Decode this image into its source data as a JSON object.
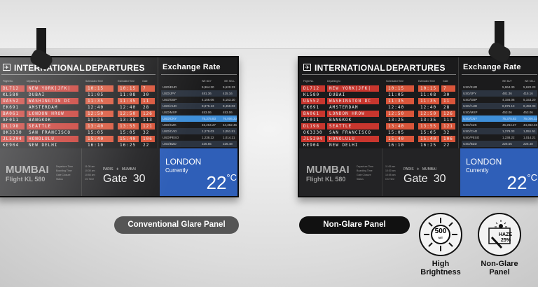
{
  "board": {
    "title_left": "INTERNATIONAL",
    "title_right": "DEPARTURES",
    "col_headers": [
      "Flight No.",
      "Departing to",
      "Scheduled Time",
      "Estimated Time",
      "Gate"
    ],
    "flights": [
      [
        "DL712",
        "NEW YORK|JFK|",
        "10:15",
        "10:15",
        "7"
      ],
      [
        "KL580",
        "DUBAI",
        "11:05",
        "11:08",
        "30"
      ],
      [
        "UA552",
        "WASHINGTON DC",
        "11:35",
        "11:35",
        "11"
      ],
      [
        "EK691",
        "AMSTERDAM",
        "12:40",
        "12:40",
        "28"
      ],
      [
        "BA061",
        "LONDON HROW",
        "12:50",
        "12:50",
        "126"
      ],
      [
        "AF011",
        "BANGKOK",
        "13:25",
        "13:35",
        "113"
      ],
      [
        "DL198",
        "SEATTLE",
        "13:40",
        "13:55",
        "121"
      ],
      [
        "OK3330",
        "SAN FRANCISCO",
        "15:05",
        "15:05",
        "32"
      ],
      [
        "JL5204",
        "HONOLULU",
        "15:40",
        "15:40",
        "106"
      ],
      [
        "KE904",
        "NEW DELHI",
        "16:10",
        "16:25",
        "22"
      ]
    ],
    "exchange": {
      "title": "Exchange Rate",
      "buy_label": "WE BUY",
      "sell_label": "WE SELL",
      "rows": [
        [
          "USD/EUR",
          "5,964.30",
          "5,620.23"
        ],
        [
          "USD/JPY",
          "481.36",
          "415.16"
        ],
        [
          "USD/GBP",
          "4,156.06",
          "5,153.20"
        ],
        [
          "USD/AUD",
          "8,875.13",
          "8,459.03"
        ],
        [
          "USD/MXP",
          "453.06",
          "453.06"
        ],
        [
          "USD/CNY",
          "75,375.83",
          "76,006.33"
        ],
        [
          "USD/CZK",
          "46,264.27",
          "44,362.46"
        ],
        [
          "USD/CAD",
          "1,279.03",
          "1,051.51"
        ],
        [
          "USD/PESO",
          "1,238.22",
          "1,014.21"
        ],
        [
          "USD/BZD",
          "226.55",
          "226.48"
        ]
      ]
    },
    "mumbai": {
      "city": "MUMBAI",
      "flight": "Flight KL 580",
      "labels": [
        "Departure Time",
        "Boarding Time",
        "Gate Closure",
        "Status"
      ],
      "values": [
        "11:05 am",
        "10:30 am",
        "10:55 am",
        "On Time"
      ]
    },
    "gate": {
      "from": "PARIS",
      "to": "MUMBAI",
      "gate_label": "Gate",
      "gate_number": "30"
    },
    "weather": {
      "city": "LONDON",
      "label": "Currently",
      "temp": "22",
      "unit": "°C"
    }
  },
  "labels": {
    "conventional": "Conventional Glare Panel",
    "non_glare": "Non-Glare Panel"
  },
  "features": [
    {
      "icon": "sun-500-nit-icon",
      "badge": "500",
      "badge_unit": "NIT",
      "caption": [
        "High",
        "Brightness"
      ]
    },
    {
      "icon": "haze-25-icon",
      "badge": "HAZE",
      "badge_unit": "25%",
      "caption": [
        "Non-Glare",
        "Panel"
      ]
    }
  ],
  "colors": {
    "row_red": "#c8362e",
    "weather_blue": "#2f5fb8",
    "highlight_blue": "#3f8fd8"
  }
}
